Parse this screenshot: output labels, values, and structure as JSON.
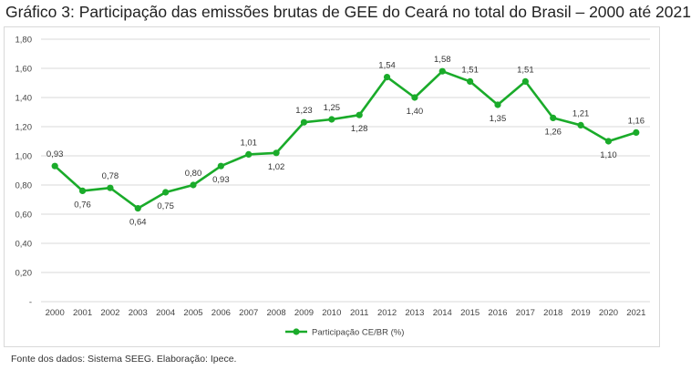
{
  "header": {
    "title_prefix": "Gráfico 3:",
    "title_text": "Participação das emissões brutas de GEE do Ceará no total do Brasil – 2000 até 2021"
  },
  "footer": {
    "source": "Fonte dos dados: Sistema SEEG. Elaboração: Ipece."
  },
  "colors": {
    "series": "#1aab2a",
    "grid": "#d9d9d9",
    "text": "#444444"
  },
  "chart_data": {
    "type": "line",
    "title": "Participação das emissões brutas de GEE do Ceará no total do Brasil – 2000 até 2021",
    "xlabel": "",
    "ylabel": "",
    "x": [
      "2000",
      "2001",
      "2002",
      "2003",
      "2004",
      "2005",
      "2006",
      "2007",
      "2008",
      "2009",
      "2010",
      "2011",
      "2012",
      "2013",
      "2014",
      "2015",
      "2016",
      "2017",
      "2018",
      "2019",
      "2020",
      "2021"
    ],
    "y_ticks": [
      "-",
      "0,20",
      "0,40",
      "0,60",
      "0,80",
      "1,00",
      "1,20",
      "1,40",
      "1,60",
      "1,80"
    ],
    "ylim": [
      0,
      1.8
    ],
    "grid": true,
    "legend_position": "bottom",
    "series": [
      {
        "name": "Participação CE/BR (%)",
        "values": [
          0.93,
          0.76,
          0.78,
          0.64,
          0.75,
          0.8,
          0.93,
          1.01,
          1.02,
          1.23,
          1.25,
          1.28,
          1.54,
          1.4,
          1.58,
          1.51,
          1.35,
          1.51,
          1.26,
          1.21,
          1.1,
          1.16
        ],
        "labels": [
          "0,93",
          "0,76",
          "0,78",
          "0,64",
          "0,75",
          "0,80",
          "0,93",
          "1,01",
          "1,02",
          "1,23",
          "1,25",
          "1,28",
          "1,54",
          "1,40",
          "1,58",
          "1,51",
          "1,35",
          "1,51",
          "1,26",
          "1,21",
          "1,10",
          "1,16"
        ],
        "label_positions": [
          "above",
          "below",
          "above",
          "below",
          "below",
          "above",
          "below",
          "above",
          "below",
          "above",
          "above",
          "below",
          "above",
          "below",
          "above",
          "above",
          "below",
          "above",
          "below",
          "above",
          "below",
          "above"
        ]
      }
    ]
  }
}
